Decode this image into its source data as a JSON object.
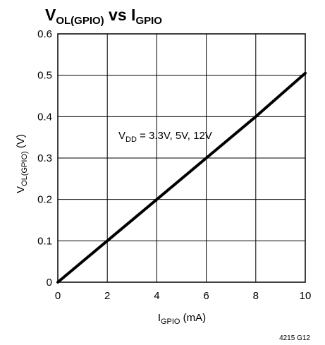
{
  "chart_data": {
    "type": "line",
    "title": {
      "main": "V",
      "sub": "OL(GPIO)",
      "mid": " vs I",
      "sub2": "GPIO"
    },
    "xlabel": {
      "main": "I",
      "sub": "GPIO",
      "rest": " (mA)"
    },
    "ylabel": {
      "main": "V",
      "sub": "OL(GPIO)",
      "rest": " (V)"
    },
    "xlim": [
      0,
      10
    ],
    "ylim": [
      0,
      0.6
    ],
    "x_ticks": [
      "0",
      "2",
      "4",
      "6",
      "8",
      "10"
    ],
    "y_ticks": [
      "0",
      "0.1",
      "0.2",
      "0.3",
      "0.4",
      "0.5",
      "0.6"
    ],
    "grid": true,
    "series": [
      {
        "x": [
          0,
          2,
          4,
          6,
          8,
          10
        ],
        "y": [
          0,
          0.1,
          0.2,
          0.3,
          0.4,
          0.505
        ]
      }
    ],
    "annotation": {
      "main": "V",
      "sub": "DD",
      "rest": " = 3.3V, 5V, 12V"
    },
    "figure_code": "4215 G12",
    "colors": {
      "line": "#000000",
      "grid": "#000000"
    }
  }
}
